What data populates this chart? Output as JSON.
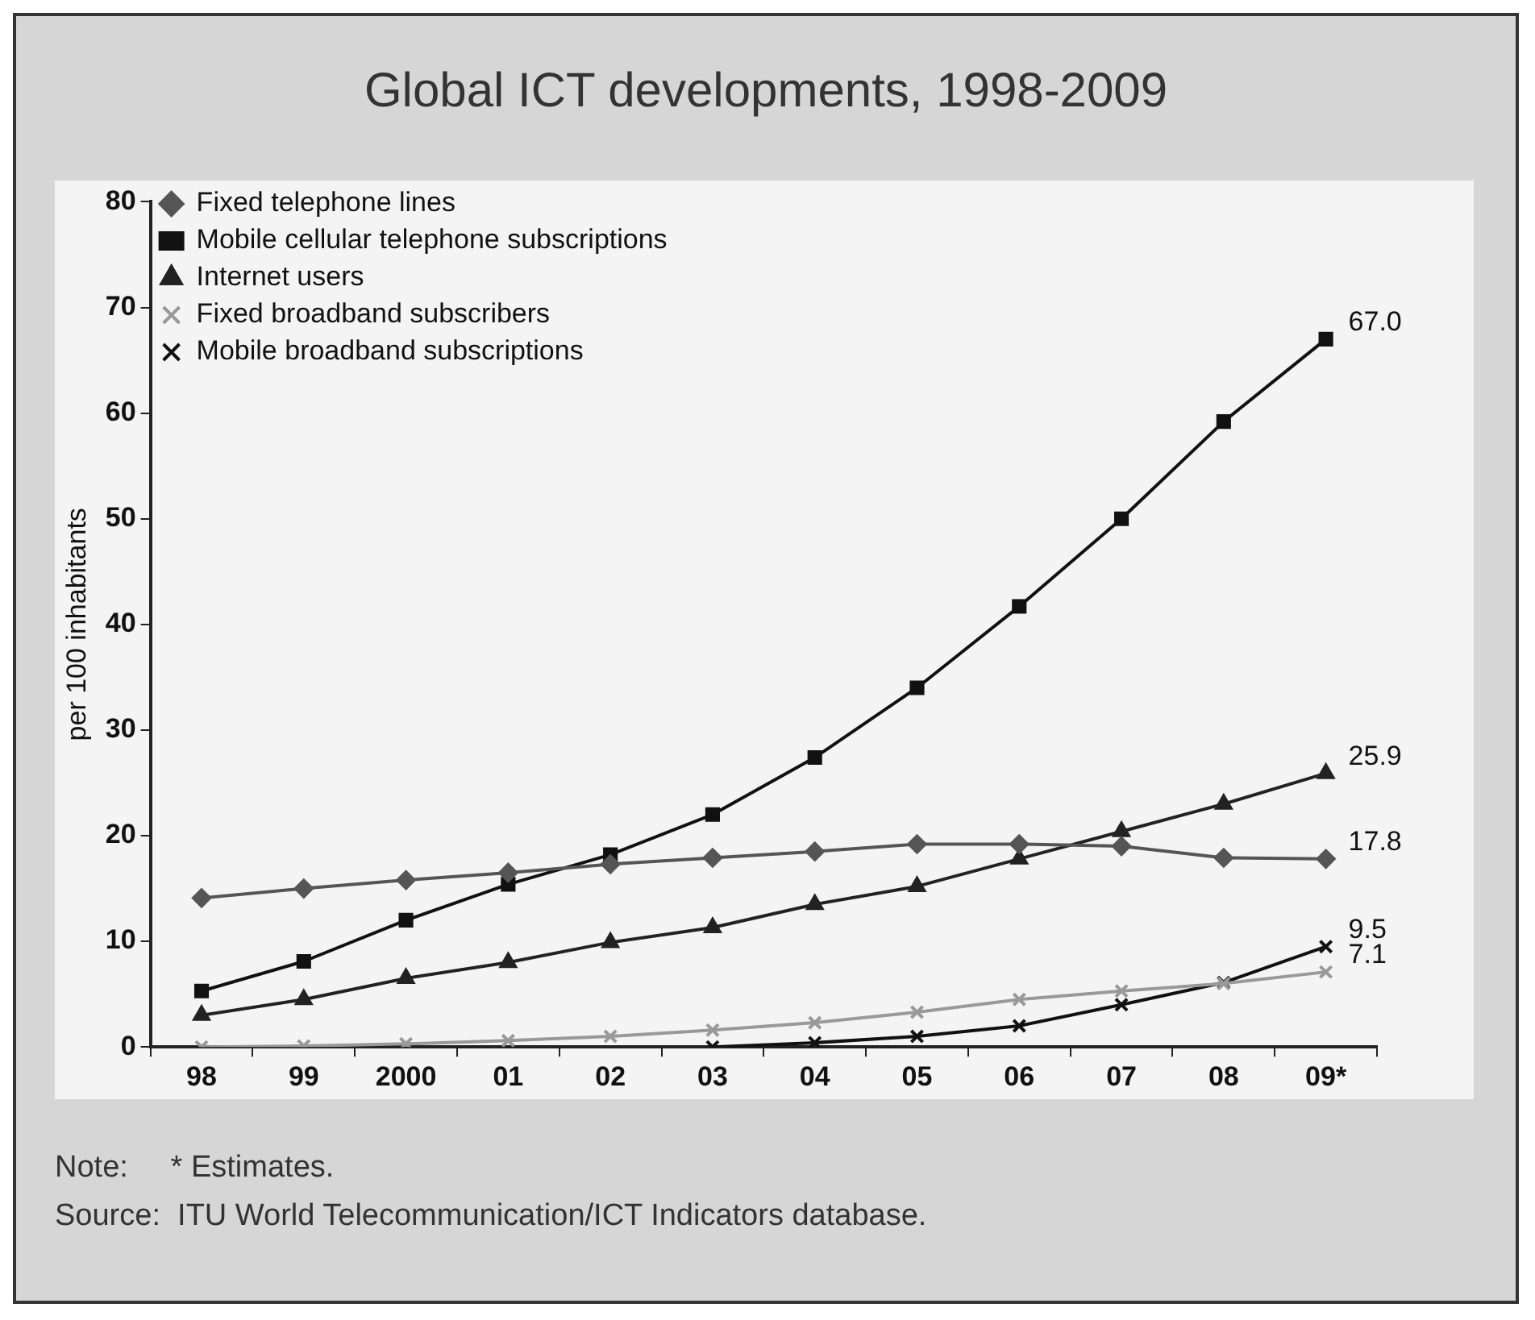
{
  "chart_data": {
    "type": "line",
    "title": "Global ICT developments, 1998-2009",
    "ylabel": "per 100 inhabitants",
    "categories": [
      "98",
      "99",
      "2000",
      "01",
      "02",
      "03",
      "04",
      "05",
      "06",
      "07",
      "08",
      "09*"
    ],
    "ylim": [
      0,
      80
    ],
    "yticks": [
      0,
      10,
      20,
      30,
      40,
      50,
      60,
      70,
      80
    ],
    "grid": false,
    "legend": "top left",
    "series": [
      {
        "name": "Fixed telephone lines",
        "color": "#555555",
        "marker": "diamond",
        "values": [
          14.1,
          15,
          15.8,
          16.5,
          17.3,
          17.9,
          18.5,
          19.2,
          19.2,
          19,
          17.9,
          17.8
        ],
        "value_labels": [
          null,
          null,
          null,
          null,
          null,
          null,
          null,
          null,
          null,
          null,
          null,
          "17.8"
        ]
      },
      {
        "name": "Mobile cellular telephone subscriptions",
        "color": "#111111",
        "marker": "square",
        "values": [
          5.3,
          8.1,
          12,
          15.4,
          18.2,
          22,
          27.4,
          34,
          41.7,
          50,
          59.2,
          67.0
        ],
        "value_labels": [
          null,
          null,
          null,
          null,
          null,
          null,
          null,
          null,
          null,
          null,
          null,
          "67.0"
        ]
      },
      {
        "name": "Internet users",
        "color": "#222222",
        "marker": "triangle",
        "values": [
          3,
          4.5,
          6.5,
          8,
          9.9,
          11.3,
          13.5,
          15.2,
          17.8,
          20.4,
          23,
          25.9
        ],
        "value_labels": [
          null,
          null,
          null,
          null,
          null,
          null,
          null,
          null,
          null,
          null,
          null,
          "25.9"
        ]
      },
      {
        "name": "Fixed broadband subscribers",
        "color": "#999999",
        "marker": "cross",
        "values": [
          0,
          0.1,
          0.3,
          0.6,
          1,
          1.6,
          2.3,
          3.3,
          4.5,
          5.3,
          6,
          7.1
        ],
        "value_labels": [
          null,
          null,
          null,
          null,
          null,
          null,
          null,
          null,
          null,
          null,
          null,
          "7.1"
        ]
      },
      {
        "name": "Mobile broadband subscriptions",
        "color": "#111111",
        "marker": "cross",
        "values": [
          null,
          null,
          null,
          null,
          null,
          0,
          0.4,
          1,
          2,
          4,
          6.1,
          9.5
        ],
        "value_labels": [
          null,
          null,
          null,
          null,
          null,
          null,
          null,
          null,
          null,
          null,
          null,
          "9.5"
        ]
      }
    ],
    "annotations": [
      "Note:     * Estimates.",
      "Source:  ITU World Telecommunication/ICT Indicators database."
    ]
  }
}
